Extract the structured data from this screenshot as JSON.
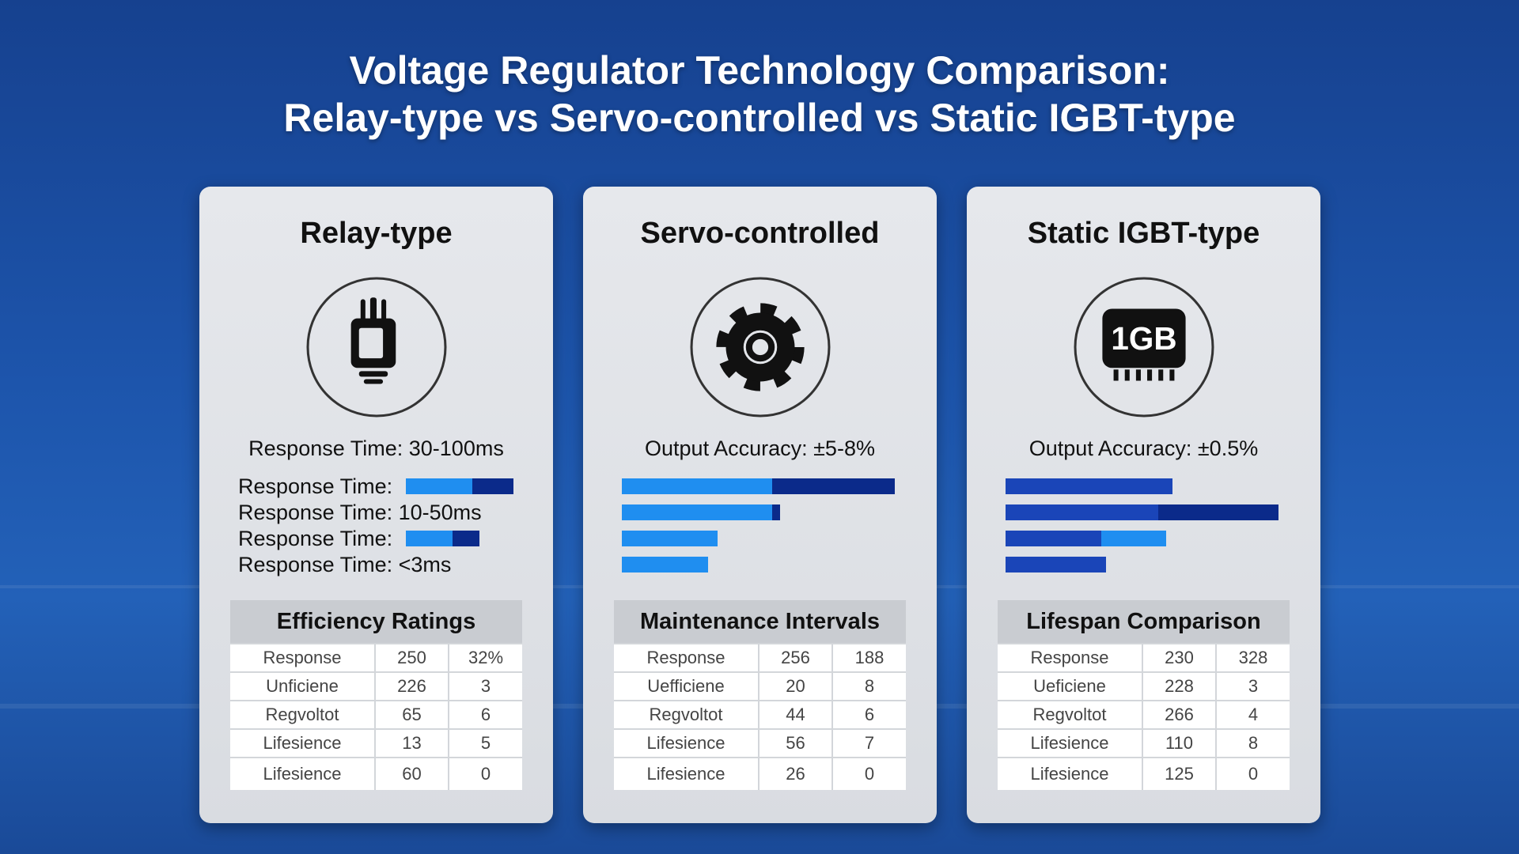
{
  "title_lines": [
    "Voltage Regulator Technology Comparison:",
    "Relay-type vs Servo-controlled vs Static IGBT-type"
  ],
  "cards": [
    {
      "title": "Relay-type",
      "icon": "relay",
      "subtitle": "Response Time: 30-100ms",
      "rows": [
        {
          "label": "Response Time:",
          "segments": [
            {
              "value": 69,
              "color": "#1f8ef0"
            },
            {
              "value": 42,
              "color": "#0b2a8a"
            }
          ]
        },
        {
          "label": "Response Time: 10-50ms",
          "segments": []
        },
        {
          "label": "Response Time:",
          "segments": [
            {
              "value": 48,
              "color": "#1f8ef0"
            },
            {
              "value": 28,
              "color": "#0b2a8a"
            }
          ]
        },
        {
          "label": "Response Time: <3ms",
          "segments": []
        }
      ],
      "table": {
        "title": "Efficiency Ratings",
        "rows": [
          [
            "Response",
            "250",
            "32%"
          ],
          [
            "Unficiene",
            "226",
            "3"
          ],
          [
            "Regvoltot",
            "65",
            "6"
          ],
          [
            "Lifesience",
            "13",
            "5"
          ],
          [
            "Lifesience",
            "60",
            "0"
          ]
        ]
      }
    },
    {
      "title": "Servo-controlled",
      "icon": "gear",
      "subtitle": "Output Accuracy: ±5-8%",
      "rows": [
        {
          "segments": [
            {
              "value": 155,
              "color": "#1f8ef0"
            },
            {
              "value": 127,
              "color": "#0b2a8a"
            }
          ]
        },
        {
          "segments": [
            {
              "value": 155,
              "color": "#1f8ef0"
            },
            {
              "value": 8,
              "color": "#0b2a8a"
            }
          ]
        },
        {
          "segments": [
            {
              "value": 99,
              "color": "#1f8ef0"
            }
          ]
        },
        {
          "segments": [
            {
              "value": 89,
              "color": "#1f8ef0"
            }
          ]
        }
      ],
      "table": {
        "title": "Maintenance Intervals",
        "rows": [
          [
            "Response",
            "256",
            "188"
          ],
          [
            "Uefficiene",
            "20",
            "8"
          ],
          [
            "Regvoltot",
            "44",
            "6"
          ],
          [
            "Lifesience",
            "56",
            "7"
          ],
          [
            "Lifesience",
            "26",
            "0"
          ]
        ]
      }
    },
    {
      "title": "Static IGBT-type",
      "icon": "chip",
      "icon_label": "1GB",
      "subtitle": "Output Accuracy: ±0.5%",
      "rows": [
        {
          "segments": [
            {
              "value": 172,
              "color": "#1a45b8"
            }
          ]
        },
        {
          "segments": [
            {
              "value": 158,
              "color": "#1a45b8"
            },
            {
              "value": 124,
              "color": "#0b2a8a"
            }
          ]
        },
        {
          "segments": [
            {
              "value": 99,
              "color": "#1a45b8"
            },
            {
              "value": 67,
              "color": "#1f8ef0"
            }
          ]
        },
        {
          "segments": [
            {
              "value": 104,
              "color": "#1a45b8"
            }
          ]
        }
      ],
      "table": {
        "title": "Lifespan Comparison",
        "rows": [
          [
            "Response",
            "230",
            "328"
          ],
          [
            "Ueficiene",
            "228",
            "3"
          ],
          [
            "Regvoltot",
            "266",
            "4"
          ],
          [
            "Lifesience",
            "110",
            "8"
          ],
          [
            "Lifesience",
            "125",
            "0"
          ]
        ]
      }
    }
  ]
}
